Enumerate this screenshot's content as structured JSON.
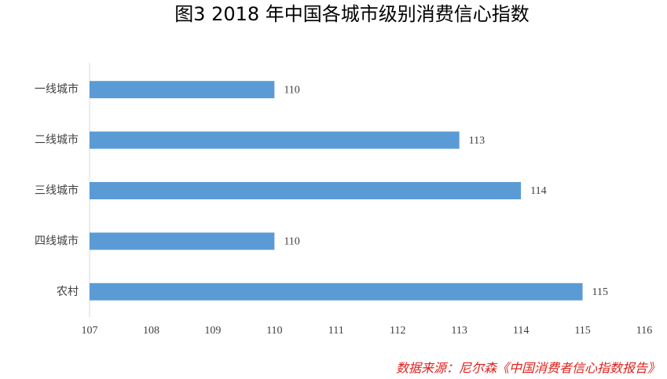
{
  "chart_data": {
    "type": "bar",
    "orientation": "horizontal",
    "title": "图3  2018 年中国各城市级别消费信心指数",
    "categories": [
      "一线城市",
      "二线城市",
      "三线城市",
      "四线城市",
      "农村"
    ],
    "values": [
      110,
      113,
      114,
      110,
      115
    ],
    "color": "#5b9bd5",
    "xlim": [
      107,
      116
    ],
    "xticks": [
      107,
      108,
      109,
      110,
      111,
      112,
      113,
      114,
      115,
      116
    ],
    "grid": false,
    "source": "数据来源：尼尔森《中国消费者信心指数报告》"
  }
}
